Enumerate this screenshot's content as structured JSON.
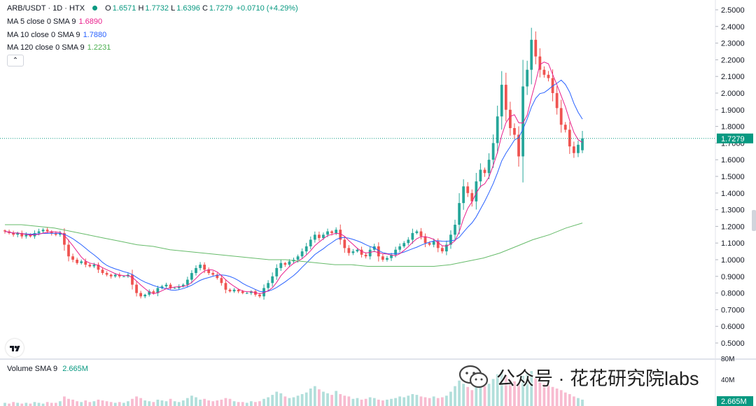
{
  "header": {
    "symbol": "ARB/USDT · 1D · HTX",
    "open_label": "O",
    "open": "1.6571",
    "high_label": "H",
    "high": "1.7732",
    "low_label": "L",
    "low": "1.6396",
    "close_label": "C",
    "close": "1.7279",
    "change": "+0.0710 (+4.29%)"
  },
  "indicators": [
    {
      "label": "MA 5 close 0 SMA 9",
      "value": "1.6890",
      "color": "#e91e8c"
    },
    {
      "label": "MA 10 close 0 SMA 9",
      "value": "1.7880",
      "color": "#2962ff"
    },
    {
      "label": "MA 120 close 0 SMA 9",
      "value": "1.2231",
      "color": "#4caf50"
    }
  ],
  "collapse_icon": "chevron-up-icon",
  "volume": {
    "label": "Volume SMA 9",
    "value": "2.665M"
  },
  "watermark": {
    "text": "公众号 · 花花研究院labs",
    "icon": "wechat-icon"
  },
  "colors": {
    "up": "#26a69a",
    "down": "#ef5350",
    "up_volume": "#b2dfdb",
    "down_volume": "#f8bbd0",
    "price_line": "#089981"
  },
  "chart_data": {
    "type": "candlestick",
    "title": "ARB/USDT · 1D · HTX",
    "price_axis": {
      "ticks": [
        "2.5000",
        "2.4000",
        "2.3000",
        "2.2000",
        "2.1000",
        "2.0000",
        "1.9000",
        "1.8000",
        "1.7000",
        "1.6000",
        "1.5000",
        "1.4000",
        "1.3000",
        "1.2000",
        "1.1000",
        "1.0000",
        "0.9000",
        "0.8000",
        "0.7000",
        "0.6000",
        "0.5000"
      ],
      "current_label": "1.7279",
      "current_price": 1.7279,
      "range": [
        0.45,
        2.55
      ]
    },
    "volume_axis": {
      "ticks": [
        "80M",
        "40M"
      ],
      "current_label": "2.665M"
    },
    "last_candle": {
      "open": 1.6571,
      "high": 1.7732,
      "low": 1.6396,
      "close": 1.7279
    },
    "closes": [
      1.17,
      1.16,
      1.15,
      1.16,
      1.14,
      1.15,
      1.14,
      1.16,
      1.17,
      1.18,
      1.17,
      1.16,
      1.15,
      1.16,
      1.09,
      1.02,
      1.0,
      0.98,
      0.99,
      0.97,
      0.96,
      0.97,
      0.94,
      0.92,
      0.91,
      0.9,
      0.91,
      0.9,
      0.9,
      0.91,
      0.85,
      0.8,
      0.78,
      0.79,
      0.81,
      0.8,
      0.83,
      0.84,
      0.85,
      0.83,
      0.83,
      0.84,
      0.85,
      0.88,
      0.92,
      0.95,
      0.97,
      0.94,
      0.92,
      0.91,
      0.89,
      0.86,
      0.82,
      0.81,
      0.82,
      0.81,
      0.8,
      0.8,
      0.81,
      0.79,
      0.78,
      0.83,
      0.86,
      0.9,
      0.95,
      0.98,
      0.97,
      0.99,
      1.0,
      1.02,
      1.05,
      1.08,
      1.12,
      1.15,
      1.13,
      1.15,
      1.17,
      1.16,
      1.18,
      1.12,
      1.07,
      1.04,
      1.05,
      1.06,
      1.03,
      1.02,
      1.06,
      1.08,
      1.02,
      1.0,
      1.01,
      1.03,
      1.06,
      1.08,
      1.1,
      1.12,
      1.16,
      1.17,
      1.14,
      1.1,
      1.09,
      1.11,
      1.07,
      1.05,
      1.09,
      1.15,
      1.21,
      1.34,
      1.44,
      1.4,
      1.35,
      1.47,
      1.54,
      1.52,
      1.6,
      1.7,
      1.86,
      2.05,
      1.9,
      1.79,
      1.75,
      1.62,
      2.04,
      2.14,
      2.32,
      2.22,
      2.14,
      2.11,
      2.09,
      2.0,
      1.91,
      1.81,
      1.78,
      1.68,
      1.64,
      1.69,
      1.73
    ],
    "ma120": [
      1.21,
      1.21,
      1.2,
      1.19,
      1.17,
      1.15,
      1.13,
      1.11,
      1.09,
      1.08,
      1.06,
      1.05,
      1.04,
      1.03,
      1.02,
      1.01,
      1.0,
      1.0,
      0.99,
      0.98,
      0.97,
      0.97,
      0.96,
      0.96,
      0.96,
      0.96,
      0.96,
      0.97,
      0.99,
      1.01,
      1.04,
      1.08,
      1.12,
      1.15,
      1.19,
      1.22
    ],
    "volume": [
      4,
      3,
      5,
      4,
      3,
      4,
      3,
      5,
      4,
      3,
      5,
      4,
      4,
      6,
      12,
      9,
      8,
      6,
      5,
      7,
      5,
      6,
      8,
      7,
      6,
      5,
      4,
      5,
      4,
      6,
      9,
      12,
      10,
      7,
      6,
      5,
      8,
      7,
      6,
      9,
      6,
      5,
      7,
      10,
      13,
      11,
      8,
      9,
      7,
      6,
      7,
      8,
      10,
      9,
      6,
      5,
      5,
      4,
      6,
      5,
      6,
      9,
      11,
      14,
      18,
      16,
      12,
      10,
      11,
      13,
      15,
      17,
      22,
      25,
      21,
      18,
      16,
      14,
      19,
      15,
      13,
      12,
      9,
      10,
      8,
      9,
      11,
      10,
      8,
      7,
      8,
      9,
      10,
      12,
      11,
      13,
      15,
      14,
      12,
      11,
      10,
      12,
      10,
      11,
      13,
      18,
      25,
      32,
      28,
      24,
      20,
      27,
      30,
      25,
      28,
      34,
      40,
      45,
      38,
      33,
      31,
      29,
      38,
      42,
      44,
      35,
      30,
      28,
      26,
      24,
      22,
      20,
      17,
      15,
      12,
      10,
      8
    ]
  }
}
